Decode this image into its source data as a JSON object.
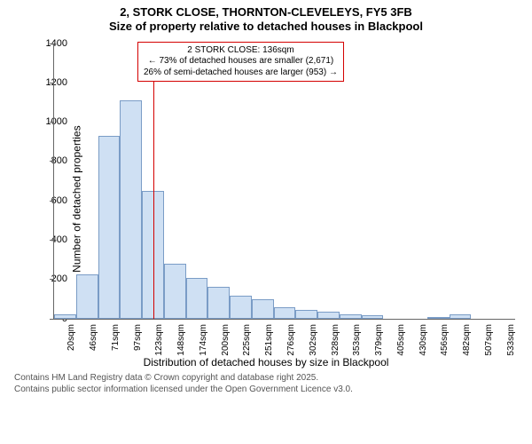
{
  "title_line1": "2, STORK CLOSE, THORNTON-CLEVELEYS, FY5 3FB",
  "title_line2": "Size of property relative to detached houses in Blackpool",
  "ylabel": "Number of detached properties",
  "xlabel": "Distribution of detached houses by size in Blackpool",
  "chart": {
    "type": "histogram",
    "bar_fill": "#cfe0f3",
    "bar_stroke": "#7a9cc6",
    "marker_color": "#d40000",
    "annotation_border": "#d40000",
    "axis_color": "#666666",
    "background": "#ffffff",
    "ylim": [
      0,
      1400
    ],
    "yticks": [
      0,
      200,
      400,
      600,
      800,
      1000,
      1200,
      1400
    ],
    "xticks": [
      "20sqm",
      "46sqm",
      "71sqm",
      "97sqm",
      "123sqm",
      "148sqm",
      "174sqm",
      "200sqm",
      "225sqm",
      "251sqm",
      "276sqm",
      "302sqm",
      "328sqm",
      "353sqm",
      "379sqm",
      "405sqm",
      "430sqm",
      "456sqm",
      "482sqm",
      "507sqm",
      "533sqm"
    ],
    "values": [
      20,
      225,
      930,
      1110,
      650,
      280,
      205,
      160,
      115,
      95,
      55,
      45,
      35,
      20,
      15,
      0,
      0,
      5,
      20,
      0,
      0
    ],
    "marker_size_sqm": 136,
    "x_min_sqm": 20,
    "x_step_sqm": 25.65,
    "annotation": {
      "line1": "2 STORK CLOSE: 136sqm",
      "line2": "← 73% of detached houses are smaller (2,671)",
      "line3": "26% of semi-detached houses are larger (953) →"
    }
  },
  "footer_line1": "Contains HM Land Registry data © Crown copyright and database right 2025.",
  "footer_line2": "Contains public sector information licensed under the Open Government Licence v3.0.",
  "fonts": {
    "title_pt": 13,
    "label_pt": 12,
    "tick_pt": 11,
    "xtick_pt": 10,
    "annot_pt": 10,
    "footer_pt": 10
  }
}
